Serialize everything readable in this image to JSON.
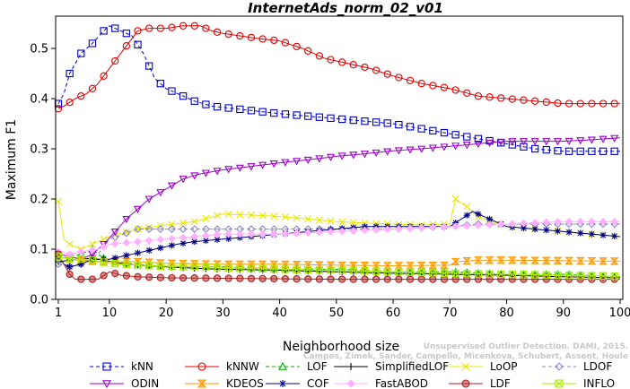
{
  "chart_data": {
    "type": "line",
    "title": "InternetAds_norm_02_v01",
    "xlabel": "Neighborhood size",
    "ylabel": "Maximum F1",
    "xlim": [
      1,
      100
    ],
    "ylim": [
      0,
      0.55
    ],
    "x_ticks": [
      1,
      10,
      20,
      30,
      40,
      50,
      60,
      70,
      80,
      90,
      100
    ],
    "y_ticks": [
      0.0,
      0.1,
      0.2,
      0.3,
      0.4,
      0.5
    ],
    "x_tick_labels": [
      "1",
      "10",
      "20",
      "30",
      "40",
      "50",
      "60",
      "70",
      "80",
      "90",
      "100"
    ],
    "y_tick_labels": [
      "0.0",
      "0.1",
      "0.2",
      "0.3",
      "0.4",
      "0.5"
    ],
    "grid": false,
    "legend_placement": "bottom",
    "credit_line1": "Unsupervised Outlier Detection. DAMI, 2015.",
    "credit_line2": "Campos, Zimek, Sander, Campello, Micenkova, Schubert, Assent, Houle",
    "series": [
      {
        "name": "kNN",
        "color": "#0000cc",
        "marker": "square",
        "dashed": true,
        "points": [
          [
            1,
            0.39
          ],
          [
            2,
            0.41
          ],
          [
            3,
            0.45
          ],
          [
            5,
            0.49
          ],
          [
            7,
            0.51
          ],
          [
            9,
            0.535
          ],
          [
            10,
            0.545
          ],
          [
            11,
            0.54
          ],
          [
            12,
            0.535
          ],
          [
            14,
            0.525
          ],
          [
            16,
            0.49
          ],
          [
            17,
            0.465
          ],
          [
            18,
            0.44
          ],
          [
            20,
            0.42
          ],
          [
            22,
            0.41
          ],
          [
            25,
            0.395
          ],
          [
            28,
            0.385
          ],
          [
            32,
            0.38
          ],
          [
            36,
            0.375
          ],
          [
            40,
            0.37
          ],
          [
            45,
            0.365
          ],
          [
            50,
            0.36
          ],
          [
            55,
            0.355
          ],
          [
            60,
            0.35
          ],
          [
            65,
            0.34
          ],
          [
            70,
            0.33
          ],
          [
            75,
            0.32
          ],
          [
            80,
            0.31
          ],
          [
            85,
            0.3
          ],
          [
            90,
            0.295
          ],
          [
            100,
            0.295
          ]
        ]
      },
      {
        "name": "kNNW",
        "color": "#e00000",
        "marker": "circle",
        "dashed": false,
        "points": [
          [
            1,
            0.38
          ],
          [
            2,
            0.385
          ],
          [
            4,
            0.4
          ],
          [
            6,
            0.41
          ],
          [
            8,
            0.43
          ],
          [
            10,
            0.46
          ],
          [
            12,
            0.49
          ],
          [
            14,
            0.52
          ],
          [
            15,
            0.535
          ],
          [
            17,
            0.54
          ],
          [
            20,
            0.54
          ],
          [
            23,
            0.545
          ],
          [
            26,
            0.545
          ],
          [
            28,
            0.535
          ],
          [
            30,
            0.53
          ],
          [
            33,
            0.525
          ],
          [
            36,
            0.52
          ],
          [
            40,
            0.515
          ],
          [
            44,
            0.5
          ],
          [
            48,
            0.48
          ],
          [
            52,
            0.47
          ],
          [
            56,
            0.46
          ],
          [
            60,
            0.445
          ],
          [
            65,
            0.43
          ],
          [
            70,
            0.42
          ],
          [
            75,
            0.405
          ],
          [
            80,
            0.4
          ],
          [
            85,
            0.395
          ],
          [
            90,
            0.39
          ],
          [
            100,
            0.39
          ]
        ]
      },
      {
        "name": "LOF",
        "color": "#00b000",
        "marker": "triangle-up",
        "dashed": true,
        "points": [
          [
            1,
            0.08
          ],
          [
            3,
            0.085
          ],
          [
            5,
            0.09
          ],
          [
            7,
            0.1
          ],
          [
            8,
            0.09
          ],
          [
            10,
            0.075
          ],
          [
            15,
            0.07
          ],
          [
            20,
            0.065
          ],
          [
            25,
            0.065
          ],
          [
            30,
            0.065
          ],
          [
            40,
            0.06
          ],
          [
            50,
            0.06
          ],
          [
            60,
            0.055
          ],
          [
            70,
            0.055
          ],
          [
            80,
            0.05
          ],
          [
            90,
            0.05
          ],
          [
            100,
            0.045
          ]
        ]
      },
      {
        "name": "SimplifiedLOF",
        "color": "#000000",
        "marker": "plus",
        "dashed": false,
        "points": [
          [
            1,
            0.075
          ],
          [
            3,
            0.078
          ],
          [
            5,
            0.08
          ],
          [
            7,
            0.082
          ],
          [
            9,
            0.078
          ],
          [
            12,
            0.072
          ],
          [
            15,
            0.068
          ],
          [
            20,
            0.065
          ],
          [
            25,
            0.062
          ],
          [
            30,
            0.06
          ],
          [
            40,
            0.058
          ],
          [
            50,
            0.055
          ],
          [
            60,
            0.052
          ],
          [
            70,
            0.05
          ],
          [
            80,
            0.048
          ],
          [
            90,
            0.045
          ],
          [
            100,
            0.043
          ]
        ]
      },
      {
        "name": "LoOP",
        "color": "#e8e800",
        "marker": "cross",
        "dashed": false,
        "points": [
          [
            1,
            0.195
          ],
          [
            2,
            0.12
          ],
          [
            3,
            0.11
          ],
          [
            5,
            0.1
          ],
          [
            7,
            0.11
          ],
          [
            10,
            0.125
          ],
          [
            15,
            0.14
          ],
          [
            20,
            0.148
          ],
          [
            25,
            0.155
          ],
          [
            30,
            0.17
          ],
          [
            35,
            0.168
          ],
          [
            40,
            0.165
          ],
          [
            45,
            0.16
          ],
          [
            50,
            0.155
          ],
          [
            55,
            0.152
          ],
          [
            60,
            0.15
          ],
          [
            65,
            0.148
          ],
          [
            70,
            0.15
          ],
          [
            71,
            0.2
          ],
          [
            73,
            0.185
          ],
          [
            75,
            0.165
          ],
          [
            80,
            0.145
          ],
          [
            85,
            0.14
          ],
          [
            90,
            0.135
          ],
          [
            95,
            0.13
          ],
          [
            100,
            0.125
          ]
        ]
      },
      {
        "name": "LDOF",
        "color": "#8888cc",
        "marker": "diamond",
        "dashed": true,
        "points": [
          [
            1,
            0.07
          ],
          [
            3,
            0.065
          ],
          [
            5,
            0.07
          ],
          [
            8,
            0.09
          ],
          [
            10,
            0.12
          ],
          [
            15,
            0.14
          ],
          [
            20,
            0.14
          ],
          [
            30,
            0.14
          ],
          [
            40,
            0.14
          ],
          [
            50,
            0.14
          ],
          [
            60,
            0.14
          ],
          [
            70,
            0.145
          ],
          [
            75,
            0.15
          ],
          [
            80,
            0.15
          ],
          [
            90,
            0.15
          ],
          [
            100,
            0.15
          ]
        ]
      },
      {
        "name": "ODIN",
        "color": "#9900cc",
        "marker": "triangle-down",
        "dashed": false,
        "points": [
          [
            1,
            0.09
          ],
          [
            3,
            0.085
          ],
          [
            5,
            0.08
          ],
          [
            7,
            0.09
          ],
          [
            9,
            0.11
          ],
          [
            11,
            0.135
          ],
          [
            13,
            0.16
          ],
          [
            15,
            0.18
          ],
          [
            17,
            0.2
          ],
          [
            20,
            0.22
          ],
          [
            23,
            0.24
          ],
          [
            26,
            0.25
          ],
          [
            30,
            0.258
          ],
          [
            35,
            0.265
          ],
          [
            40,
            0.272
          ],
          [
            45,
            0.278
          ],
          [
            50,
            0.285
          ],
          [
            55,
            0.29
          ],
          [
            60,
            0.296
          ],
          [
            65,
            0.3
          ],
          [
            70,
            0.305
          ],
          [
            75,
            0.31
          ],
          [
            80,
            0.315
          ],
          [
            85,
            0.315
          ],
          [
            90,
            0.315
          ],
          [
            95,
            0.318
          ],
          [
            100,
            0.322
          ]
        ]
      },
      {
        "name": "KDEOS",
        "color": "#ff9900",
        "marker": "bowtie",
        "dashed": false,
        "points": [
          [
            1,
            0.085
          ],
          [
            3,
            0.08
          ],
          [
            5,
            0.078
          ],
          [
            8,
            0.075
          ],
          [
            10,
            0.075
          ],
          [
            15,
            0.075
          ],
          [
            20,
            0.072
          ],
          [
            30,
            0.07
          ],
          [
            40,
            0.07
          ],
          [
            50,
            0.068
          ],
          [
            60,
            0.067
          ],
          [
            70,
            0.068
          ],
          [
            71,
            0.075
          ],
          [
            75,
            0.078
          ],
          [
            80,
            0.078
          ],
          [
            90,
            0.077
          ],
          [
            100,
            0.076
          ]
        ]
      },
      {
        "name": "COF",
        "color": "#000080",
        "marker": "asterisk",
        "dashed": false,
        "points": [
          [
            1,
            0.085
          ],
          [
            2,
            0.07
          ],
          [
            3,
            0.065
          ],
          [
            5,
            0.07
          ],
          [
            7,
            0.08
          ],
          [
            8,
            0.08
          ],
          [
            10,
            0.08
          ],
          [
            12,
            0.085
          ],
          [
            14,
            0.09
          ],
          [
            16,
            0.095
          ],
          [
            18,
            0.1
          ],
          [
            20,
            0.105
          ],
          [
            22,
            0.11
          ],
          [
            25,
            0.115
          ],
          [
            30,
            0.12
          ],
          [
            35,
            0.125
          ],
          [
            40,
            0.13
          ],
          [
            45,
            0.135
          ],
          [
            50,
            0.14
          ],
          [
            55,
            0.145
          ],
          [
            60,
            0.145
          ],
          [
            65,
            0.145
          ],
          [
            70,
            0.145
          ],
          [
            72,
            0.16
          ],
          [
            74,
            0.175
          ],
          [
            76,
            0.165
          ],
          [
            78,
            0.155
          ],
          [
            80,
            0.145
          ],
          [
            85,
            0.14
          ],
          [
            90,
            0.135
          ],
          [
            95,
            0.13
          ],
          [
            100,
            0.125
          ]
        ]
      },
      {
        "name": "FastABOD",
        "color": "#ffb0ff",
        "marker": "diamond-filled",
        "dashed": false,
        "points": [
          [
            1,
            0.095
          ],
          [
            3,
            0.09
          ],
          [
            5,
            0.095
          ],
          [
            8,
            0.1
          ],
          [
            10,
            0.11
          ],
          [
            15,
            0.115
          ],
          [
            20,
            0.12
          ],
          [
            30,
            0.13
          ],
          [
            40,
            0.13
          ],
          [
            50,
            0.135
          ],
          [
            60,
            0.14
          ],
          [
            70,
            0.145
          ],
          [
            80,
            0.15
          ],
          [
            90,
            0.155
          ],
          [
            100,
            0.155
          ]
        ]
      },
      {
        "name": "LDF",
        "color": "#aa2222",
        "marker": "circle-filled",
        "dashed": false,
        "points": [
          [
            1,
            0.09
          ],
          [
            2,
            0.07
          ],
          [
            3,
            0.05
          ],
          [
            4,
            0.04
          ],
          [
            6,
            0.04
          ],
          [
            8,
            0.04
          ],
          [
            10,
            0.055
          ],
          [
            12,
            0.048
          ],
          [
            15,
            0.045
          ],
          [
            20,
            0.043
          ],
          [
            30,
            0.042
          ],
          [
            40,
            0.041
          ],
          [
            50,
            0.04
          ],
          [
            60,
            0.04
          ],
          [
            70,
            0.04
          ],
          [
            80,
            0.04
          ],
          [
            90,
            0.04
          ],
          [
            100,
            0.04
          ]
        ]
      },
      {
        "name": "INFLO",
        "color": "#aaee00",
        "marker": "square-x",
        "dashed": false,
        "points": [
          [
            1,
            0.085
          ],
          [
            3,
            0.08
          ],
          [
            5,
            0.08
          ],
          [
            7,
            0.078
          ],
          [
            10,
            0.072
          ],
          [
            15,
            0.068
          ],
          [
            20,
            0.066
          ],
          [
            25,
            0.066
          ],
          [
            30,
            0.063
          ],
          [
            40,
            0.06
          ],
          [
            50,
            0.058
          ],
          [
            60,
            0.055
          ],
          [
            70,
            0.052
          ],
          [
            80,
            0.05
          ],
          [
            90,
            0.048
          ],
          [
            100,
            0.046
          ]
        ]
      }
    ]
  }
}
